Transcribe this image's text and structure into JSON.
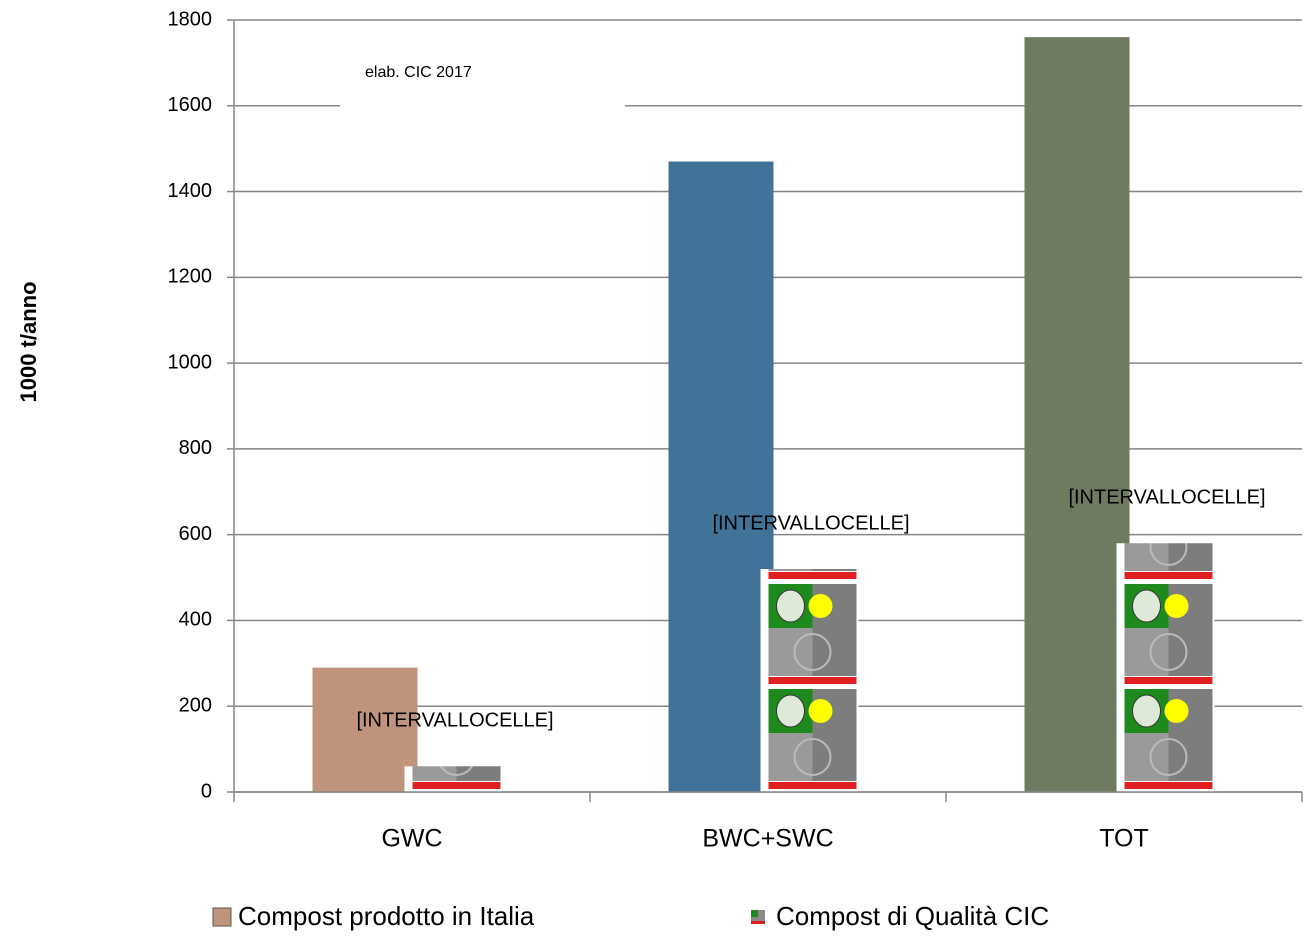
{
  "chart_data": {
    "type": "bar",
    "annotation": "elab. CIC 2017",
    "ylabel": "1000 t/anno",
    "categories": [
      "GWC",
      "BWC+SWC",
      "TOT"
    ],
    "series": [
      {
        "name": "Compost prodotto in Italia",
        "colors": [
          "#c0947c",
          "#417297",
          "#6e7b61"
        ],
        "values": [
          290,
          1470,
          1760
        ]
      },
      {
        "name": "Compost di Qualità CIC",
        "color": "#8a8a8a",
        "values": [
          60,
          520,
          580
        ],
        "value_labels": [
          "[INTERVALLOCELLE]",
          "[INTERVALLOCELLE]",
          "[INTERVALLOCELLE]"
        ]
      }
    ],
    "ylim": [
      0,
      1800
    ],
    "yticks": [
      0,
      200,
      400,
      600,
      800,
      1000,
      1200,
      1400,
      1600,
      1800
    ],
    "grid": true
  }
}
